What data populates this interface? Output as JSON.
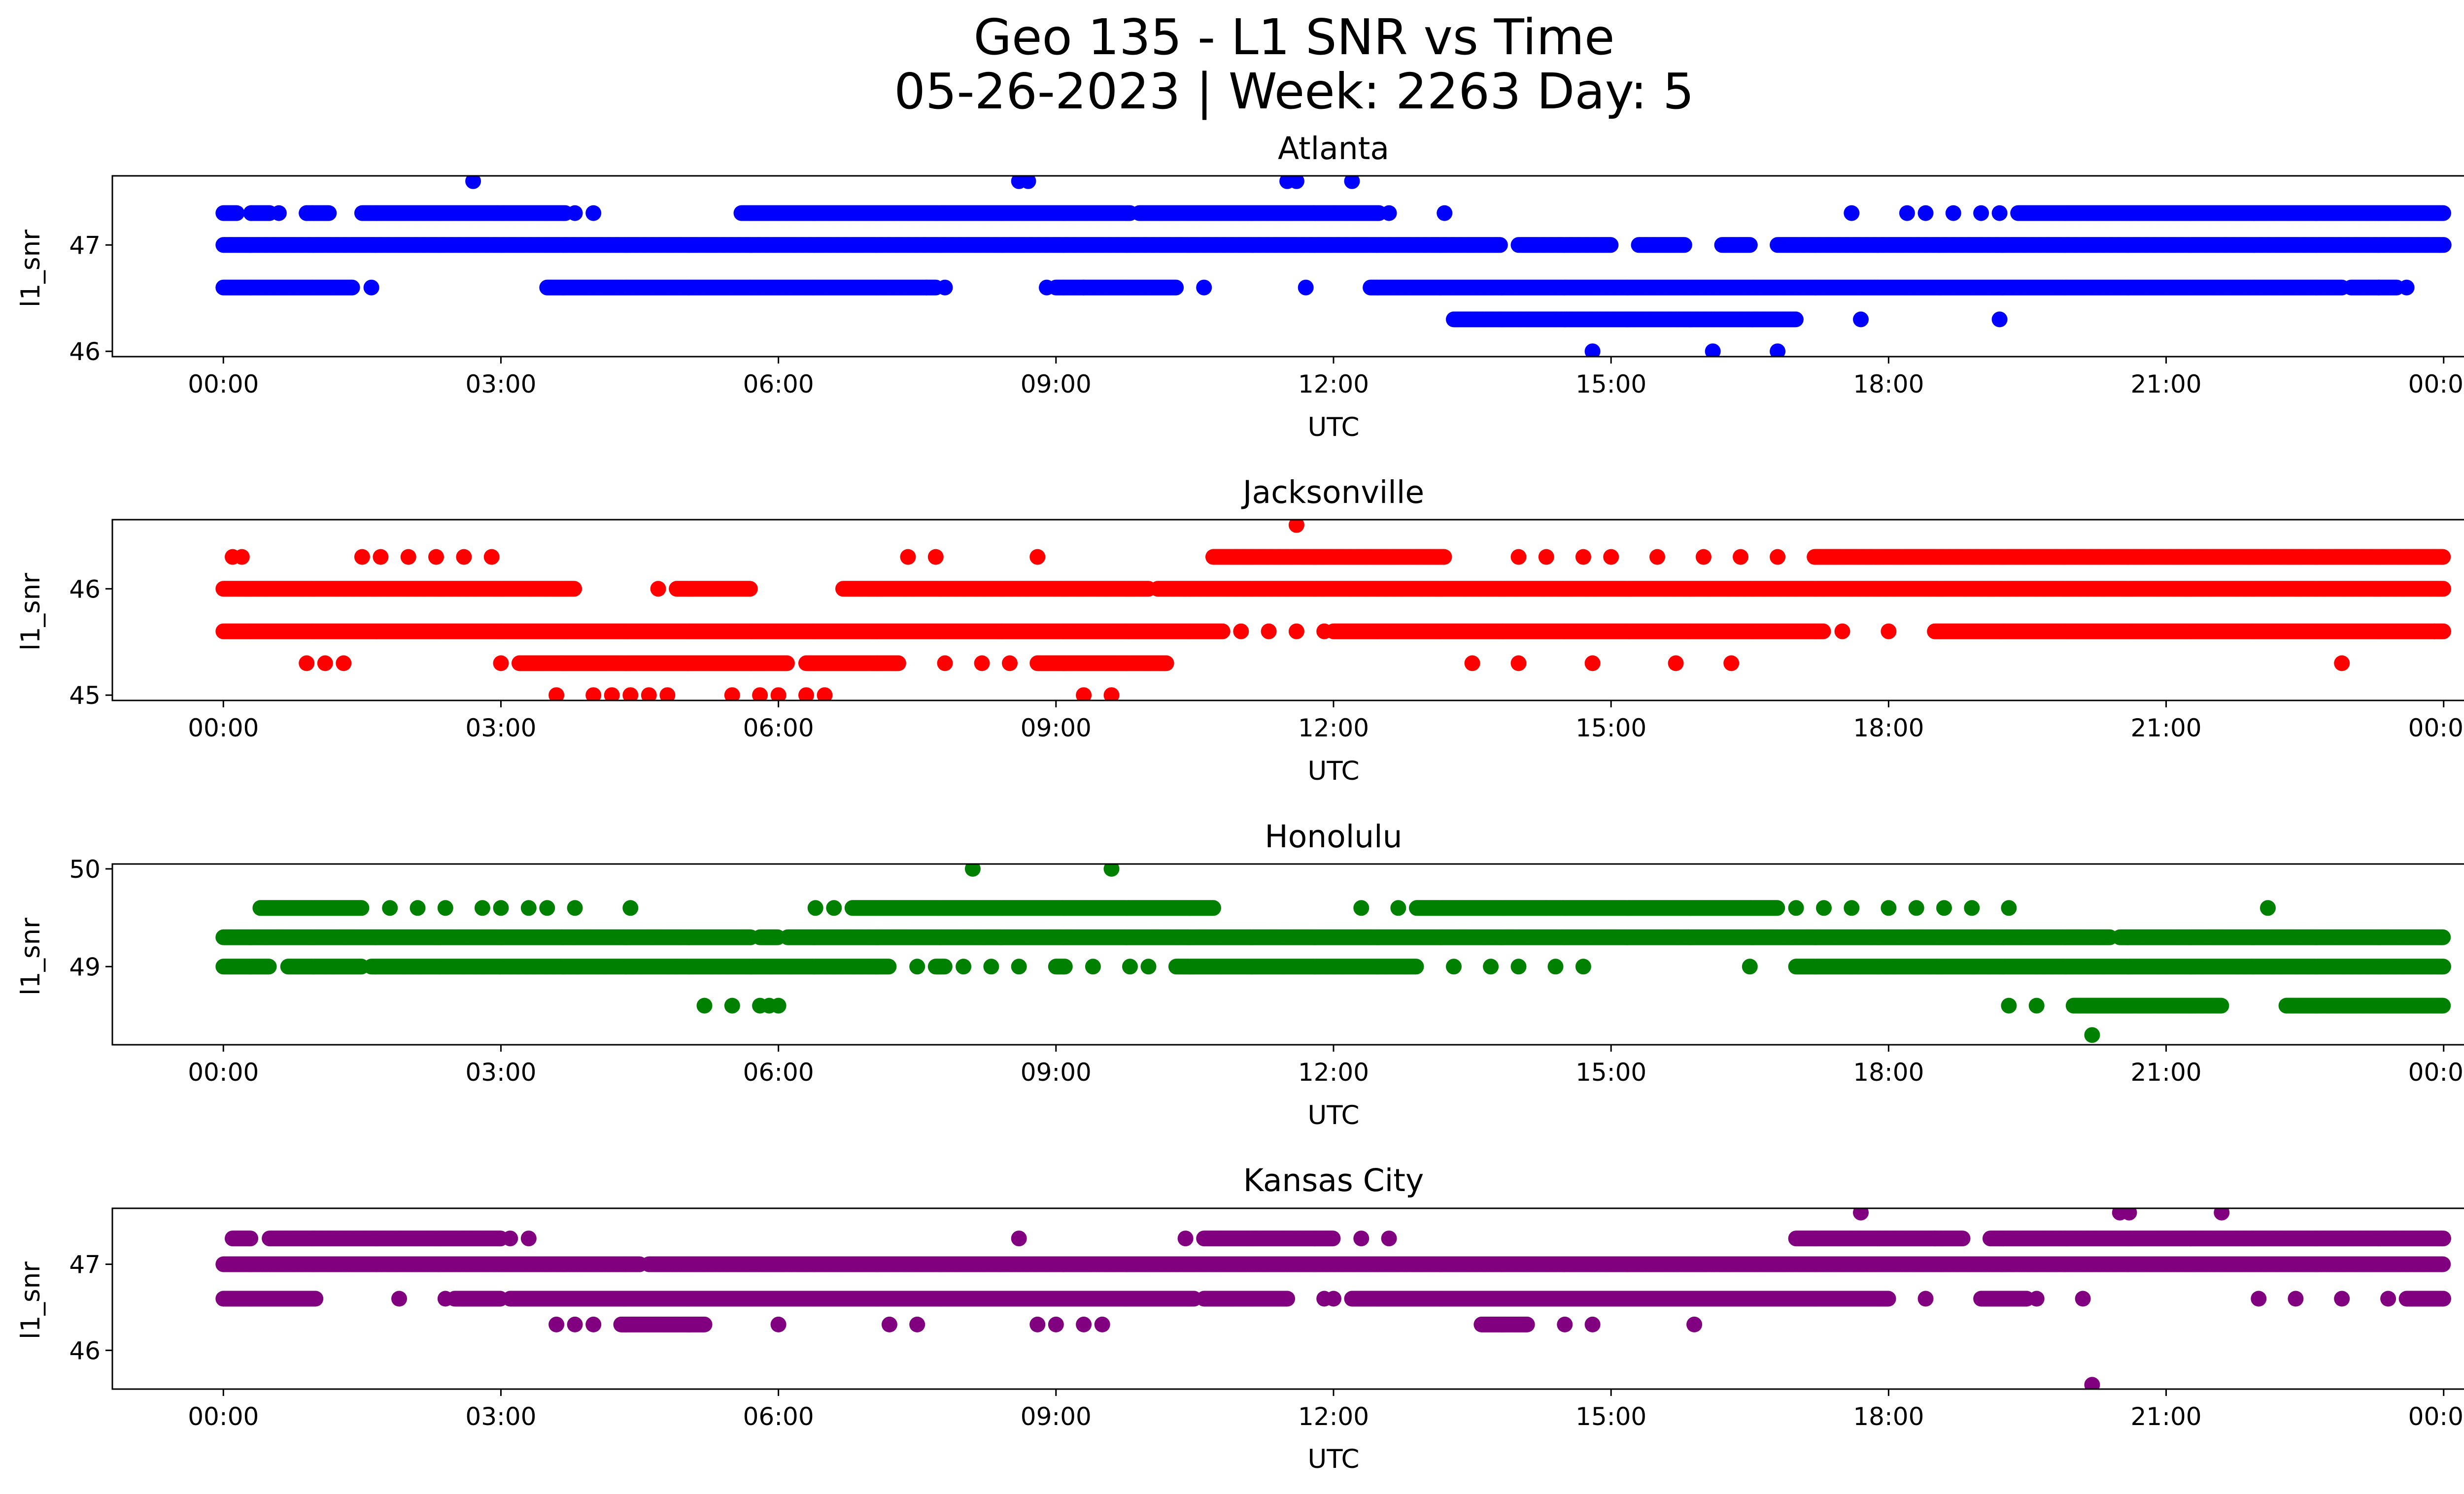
{
  "figure": {
    "title_line1": "Geo 135 - L1 SNR vs Time",
    "title_line2": "05-26-2023 | Week: 2263 Day: 5"
  },
  "chart_data": [
    {
      "type": "scatter",
      "title": "Atlanta",
      "xlabel": "UTC",
      "ylabel": "l1_snr",
      "color": "#0000ff",
      "xlim": [
        -1.2,
        25.2
      ],
      "ylim": [
        45.95,
        47.65
      ],
      "xticks": [
        "00:00",
        "03:00",
        "06:00",
        "09:00",
        "12:00",
        "15:00",
        "18:00",
        "21:00",
        "00:00"
      ],
      "yticks": [
        46,
        47
      ],
      "dense_bands": [
        {
          "y": 47.3,
          "segments": [
            [
              0.0,
              0.15
            ],
            [
              0.3,
              0.5
            ],
            [
              0.9,
              1.15
            ],
            [
              1.5,
              3.7
            ],
            [
              5.6,
              9.8
            ],
            [
              9.9,
              12.5
            ],
            [
              19.4,
              24.0
            ]
          ]
        },
        {
          "y": 47.0,
          "segments": [
            [
              0.0,
              13.8
            ],
            [
              14.0,
              15.0
            ],
            [
              15.3,
              15.8
            ],
            [
              16.2,
              16.5
            ],
            [
              16.8,
              24.0
            ]
          ]
        },
        {
          "y": 46.6,
          "segments": [
            [
              0.0,
              1.4
            ],
            [
              3.5,
              7.7
            ],
            [
              9.0,
              10.3
            ],
            [
              12.4,
              22.9
            ],
            [
              23.0,
              23.5
            ]
          ]
        },
        {
          "y": 46.3,
          "segments": [
            [
              13.3,
              17.0
            ]
          ]
        }
      ],
      "points": [
        [
          2.7,
          47.6
        ],
        [
          8.6,
          47.6
        ],
        [
          8.7,
          47.6
        ],
        [
          11.5,
          47.6
        ],
        [
          11.6,
          47.6
        ],
        [
          12.2,
          47.6
        ],
        [
          0.3,
          47.3
        ],
        [
          0.5,
          47.3
        ],
        [
          0.6,
          47.3
        ],
        [
          0.9,
          47.3
        ],
        [
          3.8,
          47.3
        ],
        [
          4.0,
          47.3
        ],
        [
          12.6,
          47.3
        ],
        [
          13.2,
          47.3
        ],
        [
          17.6,
          47.3
        ],
        [
          18.2,
          47.3
        ],
        [
          18.4,
          47.3
        ],
        [
          18.7,
          47.3
        ],
        [
          19.0,
          47.3
        ],
        [
          19.2,
          47.3
        ],
        [
          1.6,
          46.6
        ],
        [
          7.6,
          46.6
        ],
        [
          7.8,
          46.6
        ],
        [
          8.9,
          46.6
        ],
        [
          9.3,
          46.6
        ],
        [
          10.6,
          46.6
        ],
        [
          11.7,
          46.6
        ],
        [
          23.3,
          46.6
        ],
        [
          23.6,
          46.6
        ],
        [
          17.7,
          46.3
        ],
        [
          19.2,
          46.3
        ],
        [
          14.8,
          46.0
        ],
        [
          16.1,
          46.0
        ],
        [
          16.8,
          46.0
        ]
      ]
    },
    {
      "type": "scatter",
      "title": "Jacksonville",
      "xlabel": "UTC",
      "ylabel": "l1_snr",
      "color": "#ff0000",
      "xlim": [
        -1.2,
        25.2
      ],
      "ylim": [
        44.95,
        46.65
      ],
      "xticks": [
        "00:00",
        "03:00",
        "06:00",
        "09:00",
        "12:00",
        "15:00",
        "18:00",
        "21:00",
        "00:00"
      ],
      "yticks": [
        45,
        46
      ],
      "dense_bands": [
        {
          "y": 46.3,
          "segments": [
            [
              10.7,
              13.2
            ],
            [
              17.2,
              24.0
            ]
          ]
        },
        {
          "y": 46.0,
          "segments": [
            [
              0.0,
              3.8
            ],
            [
              4.9,
              5.7
            ],
            [
              6.7,
              10.0
            ],
            [
              10.1,
              24.0
            ]
          ]
        },
        {
          "y": 45.6,
          "segments": [
            [
              0.0,
              10.8
            ],
            [
              12.0,
              17.3
            ],
            [
              18.5,
              24.0
            ]
          ]
        },
        {
          "y": 45.3,
          "segments": [
            [
              3.2,
              6.1
            ],
            [
              6.3,
              7.3
            ],
            [
              8.8,
              10.2
            ]
          ]
        }
      ],
      "points": [
        [
          0.1,
          46.3
        ],
        [
          0.2,
          46.3
        ],
        [
          1.5,
          46.3
        ],
        [
          1.7,
          46.3
        ],
        [
          2.0,
          46.3
        ],
        [
          2.3,
          46.3
        ],
        [
          2.6,
          46.3
        ],
        [
          2.9,
          46.3
        ],
        [
          7.4,
          46.3
        ],
        [
          7.7,
          46.3
        ],
        [
          8.8,
          46.3
        ],
        [
          14.0,
          46.3
        ],
        [
          14.3,
          46.3
        ],
        [
          14.7,
          46.3
        ],
        [
          15.0,
          46.3
        ],
        [
          15.5,
          46.3
        ],
        [
          16.0,
          46.3
        ],
        [
          16.4,
          46.3
        ],
        [
          16.8,
          46.3
        ],
        [
          4.7,
          46.0
        ],
        [
          11.0,
          45.6
        ],
        [
          11.3,
          45.6
        ],
        [
          11.6,
          45.6
        ],
        [
          11.9,
          45.6
        ],
        [
          17.5,
          45.6
        ],
        [
          18.0,
          45.6
        ],
        [
          23.9,
          45.6
        ],
        [
          0.9,
          45.3
        ],
        [
          1.1,
          45.3
        ],
        [
          1.3,
          45.3
        ],
        [
          3.0,
          45.3
        ],
        [
          7.8,
          45.3
        ],
        [
          8.2,
          45.3
        ],
        [
          8.5,
          45.3
        ],
        [
          13.5,
          45.3
        ],
        [
          14.0,
          45.3
        ],
        [
          14.8,
          45.3
        ],
        [
          15.7,
          45.3
        ],
        [
          16.3,
          45.3
        ],
        [
          22.9,
          45.3
        ],
        [
          3.6,
          45.0
        ],
        [
          4.0,
          45.0
        ],
        [
          4.2,
          45.0
        ],
        [
          4.4,
          45.0
        ],
        [
          4.6,
          45.0
        ],
        [
          4.8,
          45.0
        ],
        [
          5.5,
          45.0
        ],
        [
          5.8,
          45.0
        ],
        [
          6.0,
          45.0
        ],
        [
          6.3,
          45.0
        ],
        [
          6.5,
          45.0
        ],
        [
          9.3,
          45.0
        ],
        [
          9.6,
          45.0
        ],
        [
          11.6,
          46.6
        ]
      ]
    },
    {
      "type": "scatter",
      "title": "Honolulu",
      "xlabel": "UTC",
      "ylabel": "l1_snr",
      "color": "#008000",
      "xlim": [
        -1.2,
        25.2
      ],
      "ylim": [
        48.2,
        50.05
      ],
      "xticks": [
        "00:00",
        "03:00",
        "06:00",
        "09:00",
        "12:00",
        "15:00",
        "18:00",
        "21:00",
        "00:00"
      ],
      "yticks": [
        49,
        50
      ],
      "dense_bands": [
        {
          "y": 49.6,
          "segments": [
            [
              0.4,
              1.5
            ],
            [
              6.8,
              10.7
            ],
            [
              12.9,
              14.3
            ],
            [
              14.3,
              16.8
            ]
          ]
        },
        {
          "y": 49.3,
          "segments": [
            [
              0.0,
              5.7
            ],
            [
              5.8,
              6.0
            ],
            [
              6.1,
              20.4
            ],
            [
              20.5,
              24.0
            ]
          ]
        },
        {
          "y": 49.0,
          "segments": [
            [
              0.0,
              0.5
            ],
            [
              0.7,
              1.5
            ],
            [
              1.6,
              7.2
            ],
            [
              7.7,
              7.8
            ],
            [
              9.0,
              9.1
            ],
            [
              10.3,
              12.9
            ],
            [
              17.0,
              24.0
            ]
          ]
        },
        {
          "y": 48.6,
          "segments": [
            [
              20.0,
              21.6
            ],
            [
              22.3,
              24.0
            ]
          ]
        }
      ],
      "points": [
        [
          8.1,
          50.0
        ],
        [
          9.6,
          50.0
        ],
        [
          1.8,
          49.6
        ],
        [
          2.1,
          49.6
        ],
        [
          2.4,
          49.6
        ],
        [
          2.8,
          49.6
        ],
        [
          3.0,
          49.6
        ],
        [
          3.3,
          49.6
        ],
        [
          3.5,
          49.6
        ],
        [
          3.8,
          49.6
        ],
        [
          4.4,
          49.6
        ],
        [
          6.4,
          49.6
        ],
        [
          6.6,
          49.6
        ],
        [
          12.3,
          49.6
        ],
        [
          12.7,
          49.6
        ],
        [
          17.0,
          49.6
        ],
        [
          17.3,
          49.6
        ],
        [
          17.6,
          49.6
        ],
        [
          18.0,
          49.6
        ],
        [
          18.3,
          49.6
        ],
        [
          18.6,
          49.6
        ],
        [
          18.9,
          49.6
        ],
        [
          19.3,
          49.6
        ],
        [
          22.1,
          49.6
        ],
        [
          7.5,
          49.0
        ],
        [
          8.0,
          49.0
        ],
        [
          8.3,
          49.0
        ],
        [
          8.6,
          49.0
        ],
        [
          9.4,
          49.0
        ],
        [
          9.8,
          49.0
        ],
        [
          10.0,
          49.0
        ],
        [
          13.3,
          49.0
        ],
        [
          13.7,
          49.0
        ],
        [
          14.0,
          49.0
        ],
        [
          14.4,
          49.0
        ],
        [
          14.7,
          49.0
        ],
        [
          16.5,
          49.0
        ],
        [
          5.2,
          48.6
        ],
        [
          5.5,
          48.6
        ],
        [
          5.8,
          48.6
        ],
        [
          5.9,
          48.6
        ],
        [
          6.0,
          48.6
        ],
        [
          19.3,
          48.6
        ],
        [
          19.6,
          48.6
        ],
        [
          20.2,
          48.3
        ]
      ]
    },
    {
      "type": "scatter",
      "title": "Kansas City",
      "xlabel": "UTC",
      "ylabel": "l1_snr",
      "color": "#800080",
      "xlim": [
        -1.2,
        25.2
      ],
      "ylim": [
        45.55,
        47.65
      ],
      "xticks": [
        "00:00",
        "03:00",
        "06:00",
        "09:00",
        "12:00",
        "15:00",
        "18:00",
        "21:00",
        "00:00"
      ],
      "yticks": [
        46,
        47
      ],
      "dense_bands": [
        {
          "y": 47.3,
          "segments": [
            [
              0.1,
              0.3
            ],
            [
              0.5,
              3.0
            ],
            [
              10.6,
              12.0
            ],
            [
              17.0,
              18.8
            ],
            [
              19.1,
              24.0
            ]
          ]
        },
        {
          "y": 47.0,
          "segments": [
            [
              0.0,
              4.5
            ],
            [
              4.6,
              24.0
            ]
          ]
        },
        {
          "y": 46.6,
          "segments": [
            [
              0.0,
              1.0
            ],
            [
              2.5,
              3.0
            ],
            [
              3.1,
              10.5
            ],
            [
              10.6,
              11.5
            ],
            [
              12.2,
              18.0
            ],
            [
              19.0,
              19.5
            ],
            [
              23.6,
              24.0
            ]
          ]
        },
        {
          "y": 46.3,
          "segments": [
            [
              4.3,
              5.2
            ],
            [
              13.6,
              14.1
            ]
          ]
        }
      ],
      "points": [
        [
          17.7,
          47.6
        ],
        [
          20.5,
          47.6
        ],
        [
          20.6,
          47.6
        ],
        [
          21.6,
          47.6
        ],
        [
          3.1,
          47.3
        ],
        [
          3.3,
          47.3
        ],
        [
          8.6,
          47.3
        ],
        [
          10.4,
          47.3
        ],
        [
          12.3,
          47.3
        ],
        [
          12.6,
          47.3
        ],
        [
          18.5,
          47.3
        ],
        [
          1.9,
          46.6
        ],
        [
          2.4,
          46.6
        ],
        [
          2.6,
          46.6
        ],
        [
          10.9,
          46.6
        ],
        [
          11.4,
          46.6
        ],
        [
          11.9,
          46.6
        ],
        [
          12.0,
          46.6
        ],
        [
          17.7,
          46.6
        ],
        [
          17.9,
          46.6
        ],
        [
          18.4,
          46.6
        ],
        [
          19.6,
          46.6
        ],
        [
          20.1,
          46.6
        ],
        [
          22.0,
          46.6
        ],
        [
          22.4,
          46.6
        ],
        [
          22.9,
          46.6
        ],
        [
          23.4,
          46.6
        ],
        [
          3.6,
          46.3
        ],
        [
          3.8,
          46.3
        ],
        [
          4.0,
          46.3
        ],
        [
          6.0,
          46.3
        ],
        [
          7.2,
          46.3
        ],
        [
          7.5,
          46.3
        ],
        [
          8.8,
          46.3
        ],
        [
          9.0,
          46.3
        ],
        [
          9.3,
          46.3
        ],
        [
          9.5,
          46.3
        ],
        [
          14.5,
          46.3
        ],
        [
          14.8,
          46.3
        ],
        [
          15.9,
          46.3
        ],
        [
          20.2,
          45.6
        ]
      ]
    }
  ]
}
